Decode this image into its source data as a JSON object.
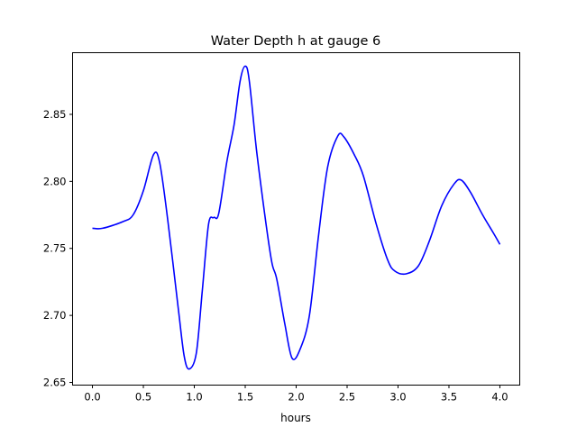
{
  "chart_data": {
    "type": "line",
    "title": "Water Depth h at gauge 6",
    "xlabel": "hours",
    "ylabel": "",
    "xlim": [
      -0.195,
      4.195
    ],
    "ylim": [
      2.648,
      2.896
    ],
    "xticks": [
      0.0,
      0.5,
      1.0,
      1.5,
      2.0,
      2.5,
      3.0,
      3.5,
      4.0
    ],
    "xtick_labels": [
      "0.0",
      "0.5",
      "1.0",
      "1.5",
      "2.0",
      "2.5",
      "3.0",
      "3.5",
      "4.0"
    ],
    "yticks": [
      2.65,
      2.7,
      2.75,
      2.8,
      2.85
    ],
    "ytick_labels": [
      "2.65",
      "2.70",
      "2.75",
      "2.80",
      "2.85"
    ],
    "grid": false,
    "series": [
      {
        "name": "h",
        "color": "#0000ff",
        "x": [
          0.0,
          0.1,
          0.3,
          0.4,
          0.5,
          0.6,
          0.66,
          0.74,
          0.84,
          0.9,
          0.95,
          1.02,
          1.08,
          1.14,
          1.19,
          1.24,
          1.32,
          1.39,
          1.45,
          1.5,
          1.54,
          1.61,
          1.69,
          1.76,
          1.81,
          1.89,
          1.96,
          2.04,
          2.13,
          2.22,
          2.31,
          2.41,
          2.47,
          2.57,
          2.66,
          2.79,
          2.9,
          2.97,
          3.08,
          3.2,
          3.31,
          3.43,
          3.55,
          3.62,
          3.71,
          3.83,
          3.94,
          4.0
        ],
        "y": [
          2.765,
          2.765,
          2.77,
          2.775,
          2.793,
          2.82,
          2.814,
          2.771,
          2.707,
          2.67,
          2.66,
          2.672,
          2.72,
          2.768,
          2.773,
          2.776,
          2.815,
          2.842,
          2.875,
          2.886,
          2.875,
          2.824,
          2.776,
          2.74,
          2.727,
          2.693,
          2.668,
          2.675,
          2.7,
          2.76,
          2.811,
          2.834,
          2.833,
          2.82,
          2.804,
          2.767,
          2.741,
          2.733,
          2.731,
          2.737,
          2.756,
          2.782,
          2.798,
          2.801,
          2.792,
          2.775,
          2.761,
          2.753
        ]
      }
    ]
  }
}
